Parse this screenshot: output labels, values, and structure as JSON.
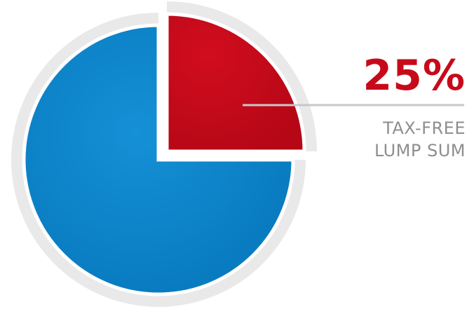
{
  "chart_data": {
    "type": "pie",
    "slices": [
      {
        "value": 25,
        "color": "#c70a1a",
        "highlighted": true
      },
      {
        "value": 75,
        "color": "#0a86cc",
        "highlighted": false
      }
    ],
    "annotation": {
      "value_text": "25%",
      "caption_lines": [
        "TAX-FREE",
        "LUMP SUM"
      ]
    },
    "legend": "none",
    "grid": false
  },
  "colors": {
    "accent": "#c70a1a",
    "main": "#0a86cc",
    "caption": "#8e8e8e",
    "rim": "#e9e9e9",
    "leader": "#c8c8c8"
  }
}
